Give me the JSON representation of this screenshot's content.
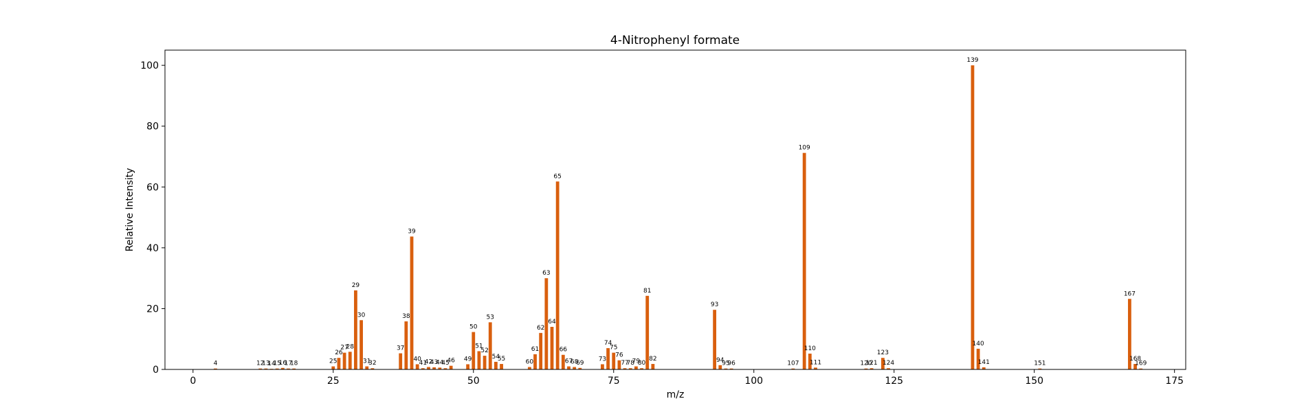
{
  "chart_data": {
    "type": "bar",
    "title": "4-Nitrophenyl formate",
    "xlabel": "m/z",
    "ylabel": "Relative Intensity",
    "xlim": [
      -5,
      177
    ],
    "ylim": [
      0,
      105
    ],
    "xticks": [
      0,
      25,
      50,
      75,
      100,
      125,
      150,
      175
    ],
    "yticks": [
      0,
      20,
      40,
      60,
      80,
      100
    ],
    "grid": false,
    "legend": "none",
    "bar_color": "#d95f0e",
    "points": [
      {
        "x": 4,
        "y": 0.3
      },
      {
        "x": 12,
        "y": 0.3
      },
      {
        "x": 13,
        "y": 0.3
      },
      {
        "x": 14,
        "y": 0.2
      },
      {
        "x": 15,
        "y": 0.3
      },
      {
        "x": 16,
        "y": 0.5
      },
      {
        "x": 17,
        "y": 0.3
      },
      {
        "x": 18,
        "y": 0.3
      },
      {
        "x": 25,
        "y": 1.0
      },
      {
        "x": 26,
        "y": 3.8
      },
      {
        "x": 27,
        "y": 5.5
      },
      {
        "x": 28,
        "y": 5.8
      },
      {
        "x": 29,
        "y": 26.0
      },
      {
        "x": 30,
        "y": 16.2
      },
      {
        "x": 31,
        "y": 1.0
      },
      {
        "x": 32,
        "y": 0.4
      },
      {
        "x": 37,
        "y": 5.3
      },
      {
        "x": 38,
        "y": 15.8
      },
      {
        "x": 39,
        "y": 43.7
      },
      {
        "x": 40,
        "y": 1.7
      },
      {
        "x": 41,
        "y": 0.4
      },
      {
        "x": 42,
        "y": 0.8
      },
      {
        "x": 43,
        "y": 0.7
      },
      {
        "x": 44,
        "y": 0.6
      },
      {
        "x": 45,
        "y": 0.4
      },
      {
        "x": 46,
        "y": 1.2
      },
      {
        "x": 49,
        "y": 1.7
      },
      {
        "x": 50,
        "y": 12.3
      },
      {
        "x": 51,
        "y": 6.0
      },
      {
        "x": 52,
        "y": 4.5
      },
      {
        "x": 53,
        "y": 15.5
      },
      {
        "x": 54,
        "y": 2.5
      },
      {
        "x": 55,
        "y": 1.8
      },
      {
        "x": 60,
        "y": 0.8
      },
      {
        "x": 61,
        "y": 5.0
      },
      {
        "x": 62,
        "y": 12.0
      },
      {
        "x": 63,
        "y": 30.0
      },
      {
        "x": 64,
        "y": 14.0
      },
      {
        "x": 65,
        "y": 61.8
      },
      {
        "x": 66,
        "y": 4.8
      },
      {
        "x": 67,
        "y": 1.0
      },
      {
        "x": 68,
        "y": 0.8
      },
      {
        "x": 69,
        "y": 0.5
      },
      {
        "x": 73,
        "y": 1.7
      },
      {
        "x": 74,
        "y": 7.0
      },
      {
        "x": 75,
        "y": 5.5
      },
      {
        "x": 76,
        "y": 3.0
      },
      {
        "x": 77,
        "y": 0.4
      },
      {
        "x": 78,
        "y": 0.4
      },
      {
        "x": 79,
        "y": 1.0
      },
      {
        "x": 80,
        "y": 0.4
      },
      {
        "x": 81,
        "y": 24.2
      },
      {
        "x": 82,
        "y": 1.8
      },
      {
        "x": 93,
        "y": 19.6
      },
      {
        "x": 94,
        "y": 1.4
      },
      {
        "x": 95,
        "y": 0.3
      },
      {
        "x": 96,
        "y": 0.3
      },
      {
        "x": 107,
        "y": 0.3
      },
      {
        "x": 109,
        "y": 71.2
      },
      {
        "x": 110,
        "y": 5.2
      },
      {
        "x": 111,
        "y": 0.6
      },
      {
        "x": 120,
        "y": 0.3
      },
      {
        "x": 121,
        "y": 0.4
      },
      {
        "x": 123,
        "y": 3.8
      },
      {
        "x": 124,
        "y": 0.4
      },
      {
        "x": 139,
        "y": 100.0
      },
      {
        "x": 140,
        "y": 6.8
      },
      {
        "x": 141,
        "y": 0.7
      },
      {
        "x": 151,
        "y": 0.3
      },
      {
        "x": 167,
        "y": 23.2
      },
      {
        "x": 168,
        "y": 1.8
      },
      {
        "x": 169,
        "y": 0.3
      }
    ]
  }
}
